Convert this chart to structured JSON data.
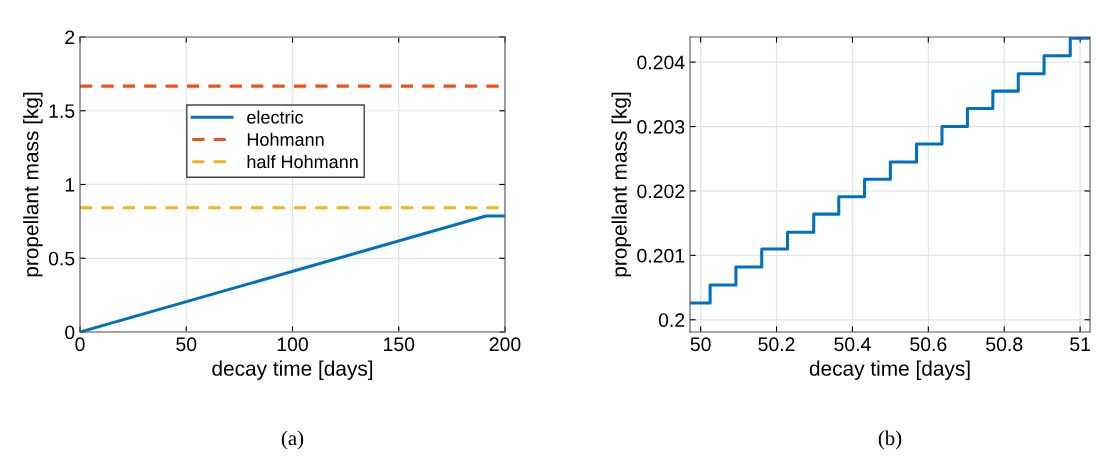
{
  "chart_data": [
    {
      "type": "line",
      "xlabel": "decay time [days]",
      "ylabel": "propellant mass [kg]",
      "xlim": [
        0,
        200
      ],
      "ylim": [
        0,
        2
      ],
      "xticks": [
        0,
        50,
        100,
        150,
        200
      ],
      "yticks": [
        0,
        0.5,
        1,
        1.5,
        2
      ],
      "grid": true,
      "legend": "top",
      "annotations": [
        "(a)"
      ],
      "series": [
        {
          "name": "electric",
          "color": "#0072bd",
          "x": [
            0,
            191,
            200
          ],
          "values": [
            0,
            0.786,
            0.786
          ],
          "line_style": "solid"
        },
        {
          "name": "Hohmann",
          "color": "#e8541e",
          "x": [
            0,
            200
          ],
          "values": [
            1.667,
            1.667
          ],
          "line_style": "dashed"
        },
        {
          "name": "half Hohmann",
          "color": "#f5b120",
          "x": [
            0,
            200
          ],
          "values": [
            0.843,
            0.843
          ],
          "line_style": "dashed"
        }
      ]
    },
    {
      "type": "step",
      "xlabel": "decay time [days]",
      "ylabel": "propellant mass [kg]",
      "xlim": [
        49.972,
        51.026
      ],
      "ylim": [
        0.19981,
        0.20439
      ],
      "xticks": [
        50,
        50.2,
        50.4,
        50.6,
        50.8,
        51
      ],
      "yticks": [
        0.2,
        0.201,
        0.202,
        0.203,
        0.204
      ],
      "grid": true,
      "annotations": [
        "(b)"
      ],
      "series": [
        {
          "color": "#0072bd",
          "x": [
            49.972,
            50.025,
            50.093,
            50.161,
            50.229,
            50.298,
            50.364,
            50.432,
            50.5,
            50.569,
            50.636,
            50.703,
            50.77,
            50.837,
            50.905,
            50.974,
            51.026
          ],
          "values": [
            0.20026,
            0.20054,
            0.20082,
            0.2011,
            0.20136,
            0.20164,
            0.20191,
            0.20218,
            0.20245,
            0.20273,
            0.203,
            0.20328,
            0.20355,
            0.20382,
            0.2041,
            0.20437,
            0.20437
          ]
        }
      ]
    }
  ]
}
